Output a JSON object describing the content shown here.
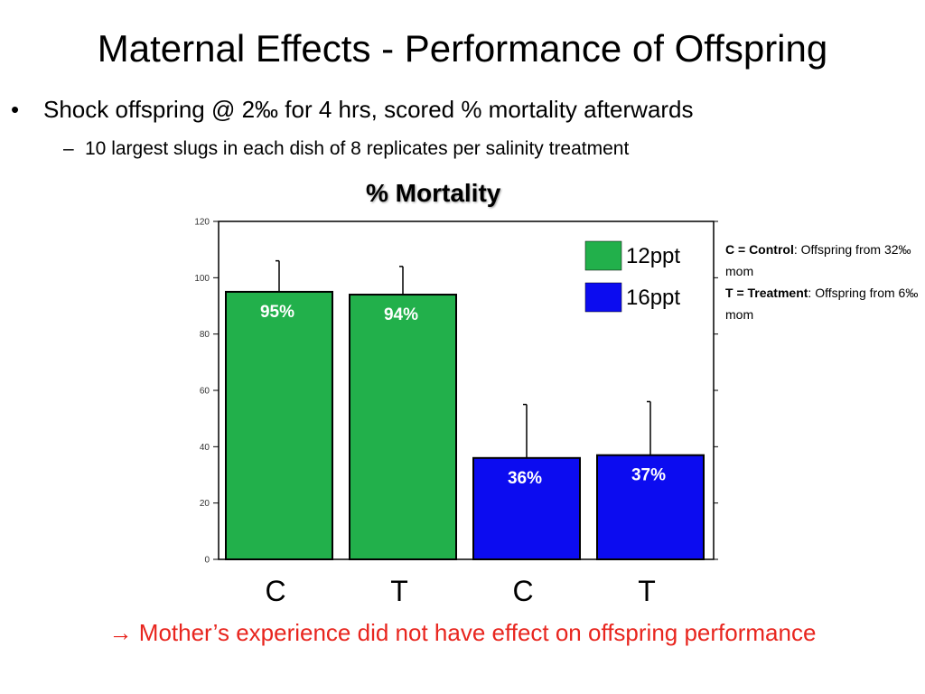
{
  "slide": {
    "title": "Maternal Effects - Performance of Offspring",
    "bullet_mark": "•",
    "bullet": "Shock offspring @ 2‰ for 4 hrs, scored % mortality afterwards",
    "sub_mark": "–",
    "sub_bullet": "10 largest slugs in each dish of 8 replicates per salinity treatment",
    "note": {
      "c_term": "C = Control",
      "c_def": ": Offspring from 32‰ mom",
      "t_term": "T = Treatment",
      "t_def": ": Offspring from 6‰ mom"
    },
    "conclusion_arrow": "→",
    "conclusion": "Mother’s experience did not have effect on offspring performance"
  },
  "chart_data": {
    "type": "bar",
    "title": "% Mortality",
    "categories": [
      "C",
      "T",
      "C",
      "T"
    ],
    "values": [
      95,
      94,
      36,
      37
    ],
    "error_upper": [
      106,
      104,
      55,
      56
    ],
    "data_labels": [
      "95%",
      "94%",
      "36%",
      "37%"
    ],
    "bar_series": [
      "12ppt",
      "12ppt",
      "16ppt",
      "16ppt"
    ],
    "series": [
      {
        "name": "12ppt",
        "color": "#22b04b"
      },
      {
        "name": "16ppt",
        "color": "#0c0cf0"
      }
    ],
    "ylim": [
      0,
      120
    ],
    "yticks": [
      0,
      20,
      40,
      60,
      80,
      100,
      120
    ],
    "legend_position": "top-right",
    "grid": false
  }
}
